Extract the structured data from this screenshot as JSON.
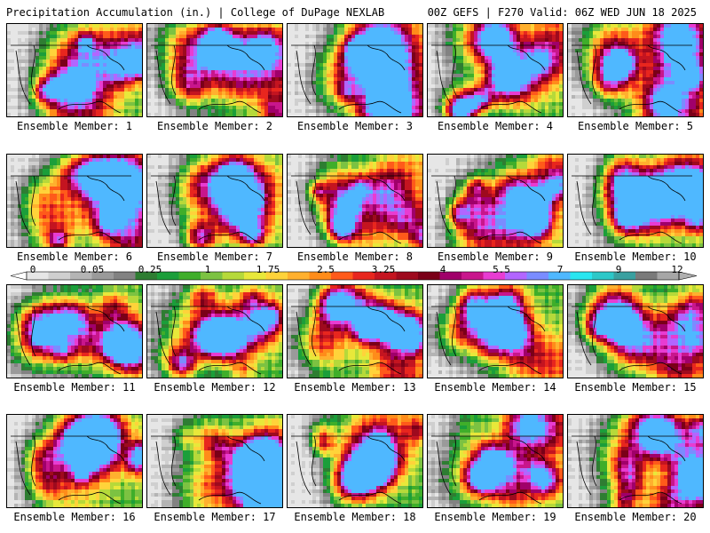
{
  "header": {
    "title": "Precipitation Accumulation (in.) | College of DuPage NEXLAB",
    "run_info": "00Z GEFS | F270 Valid: 06Z WED JUN 18 2025"
  },
  "panels": [
    {
      "label": "Ensemble Member: 1"
    },
    {
      "label": "Ensemble Member: 2"
    },
    {
      "label": "Ensemble Member: 3"
    },
    {
      "label": "Ensemble Member: 4"
    },
    {
      "label": "Ensemble Member: 5"
    },
    {
      "label": "Ensemble Member: 6"
    },
    {
      "label": "Ensemble Member: 7"
    },
    {
      "label": "Ensemble Member: 8"
    },
    {
      "label": "Ensemble Member: 9"
    },
    {
      "label": "Ensemble Member: 10"
    },
    {
      "label": "Ensemble Member: 11"
    },
    {
      "label": "Ensemble Member: 12"
    },
    {
      "label": "Ensemble Member: 13"
    },
    {
      "label": "Ensemble Member: 14"
    },
    {
      "label": "Ensemble Member: 15"
    },
    {
      "label": "Ensemble Member: 16"
    },
    {
      "label": "Ensemble Member: 17"
    },
    {
      "label": "Ensemble Member: 18"
    },
    {
      "label": "Ensemble Member: 19"
    },
    {
      "label": "Ensemble Member: 20"
    }
  ],
  "colorbar": {
    "tick_labels": [
      "0",
      "0.05",
      "0.25",
      "1",
      "1.75",
      "2.5",
      "3.25",
      "4",
      "5.5",
      "7",
      "9",
      "12"
    ],
    "colors": [
      "#e6e6e6",
      "#cfcfcf",
      "#b4b4b4",
      "#9a9a9a",
      "#828282",
      "#2e7d32",
      "#1b9e3a",
      "#3fae2a",
      "#7cc242",
      "#b6d93a",
      "#e8e83a",
      "#ffd33a",
      "#ffb02e",
      "#ff8c1a",
      "#ff5a1a",
      "#e8261e",
      "#c41420",
      "#9e0a1e",
      "#7a0018",
      "#a0006a",
      "#c8168c",
      "#e83cd2",
      "#b266ff",
      "#7a8cff",
      "#4fb8ff",
      "#28e6f0",
      "#2cc8c8",
      "#3aa0a0",
      "#7a7a7a",
      "#a6a6a6"
    ]
  }
}
